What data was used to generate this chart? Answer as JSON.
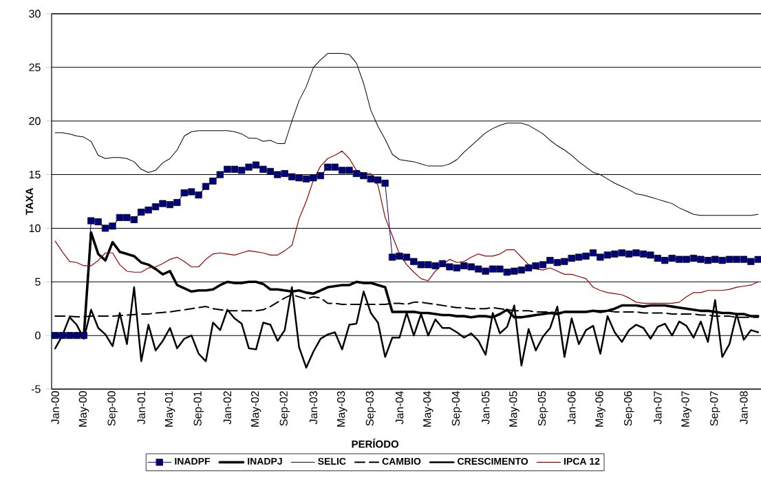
{
  "chart_data": {
    "type": "line",
    "xlabel": "PERÍODO",
    "ylabel": "TAXA",
    "categories": [
      "Jan-00",
      null,
      null,
      null,
      "May-00",
      null,
      null,
      null,
      "Sep-00",
      null,
      null,
      null,
      "Jan-01",
      null,
      null,
      null,
      "May-01",
      null,
      null,
      null,
      "Sep-01",
      null,
      null,
      null,
      "Jan-02",
      null,
      null,
      null,
      "May-02",
      null,
      null,
      null,
      "Sep-02",
      null,
      null,
      null,
      "Jan-03",
      null,
      null,
      null,
      "May-03",
      null,
      null,
      null,
      "Sep-03",
      null,
      null,
      null,
      "Jan-04",
      null,
      null,
      null,
      "May-04",
      null,
      null,
      null,
      "Sep-04",
      null,
      null,
      null,
      "Jan-05",
      null,
      null,
      null,
      "May-05",
      null,
      null,
      null,
      "Sep-05",
      null,
      null,
      null,
      "Jan-06",
      null,
      null,
      null,
      "May-06",
      null,
      null,
      null,
      "Sep-06",
      null,
      null,
      null,
      "Jan-07",
      null,
      null,
      null,
      "May-07",
      null,
      null,
      null,
      "Sep-07",
      null,
      null,
      null,
      "Jan-08",
      null,
      null
    ],
    "ylim": [
      -5,
      30
    ],
    "yticks": [
      -5,
      0,
      5,
      10,
      15,
      20,
      25,
      30
    ],
    "grid": "y",
    "legend": "bottom",
    "series": [
      {
        "name": "INADPF",
        "color": "#000080",
        "marker": "square",
        "line_style": "solid",
        "values": [
          0,
          0,
          0,
          0,
          0,
          10.7,
          10.6,
          10.0,
          10.2,
          11.0,
          11.0,
          10.8,
          11.5,
          11.7,
          12.0,
          12.3,
          12.2,
          12.4,
          13.3,
          13.4,
          13.1,
          13.9,
          14.4,
          15.0,
          15.5,
          15.5,
          15.4,
          15.7,
          15.9,
          15.5,
          15.3,
          15.0,
          15.1,
          14.8,
          14.7,
          14.6,
          14.7,
          14.9,
          15.7,
          15.7,
          15.4,
          15.4,
          15.1,
          14.9,
          14.6,
          14.5,
          14.2,
          7.3,
          7.4,
          7.3,
          6.9,
          6.6,
          6.6,
          6.5,
          6.7,
          6.4,
          6.3,
          6.5,
          6.4,
          6.2,
          6.0,
          6.2,
          6.2,
          5.9,
          6.0,
          6.1,
          6.3,
          6.5,
          6.6,
          7.0,
          6.8,
          6.9,
          7.2,
          7.3,
          7.4,
          7.7,
          7.3,
          7.5,
          7.6,
          7.7,
          7.6,
          7.7,
          7.6,
          7.5,
          7.2,
          7.0,
          7.2,
          7.1,
          7.1,
          7.2,
          7.1,
          7.0,
          7.1,
          7.0,
          7.1,
          7.1,
          7.1,
          6.9,
          7.1
        ]
      },
      {
        "name": "INADPJ",
        "color": "#000000",
        "marker": "none",
        "line_style": "solid",
        "values": [
          0,
          0,
          0,
          0,
          0,
          9.6,
          7.6,
          7.0,
          8.7,
          7.8,
          7.6,
          7.4,
          6.8,
          6.6,
          6.2,
          5.7,
          6.0,
          4.7,
          4.4,
          4.1,
          4.2,
          4.2,
          4.3,
          4.7,
          5.0,
          4.9,
          4.9,
          5.0,
          5.0,
          4.8,
          4.3,
          4.3,
          4.2,
          4.1,
          4.2,
          4.0,
          3.9,
          4.2,
          4.5,
          4.6,
          4.7,
          4.7,
          5.0,
          4.9,
          4.9,
          4.7,
          4.5,
          2.2,
          2.2,
          2.2,
          2.2,
          2.1,
          2.1,
          2.0,
          1.9,
          1.9,
          1.8,
          1.8,
          1.7,
          1.8,
          1.8,
          1.7,
          2.0,
          2.4,
          1.7,
          1.7,
          1.8,
          1.9,
          2.0,
          2.1,
          2.0,
          2.2,
          2.2,
          2.2,
          2.2,
          2.3,
          2.2,
          2.3,
          2.5,
          2.8,
          2.8,
          2.8,
          2.7,
          2.8,
          2.8,
          2.8,
          2.7,
          2.6,
          2.5,
          2.4,
          2.3,
          2.3,
          2.2,
          2.1,
          2.1,
          2.0,
          2.0,
          1.8,
          1.8
        ]
      },
      {
        "name": "SELIC",
        "color": "#000000",
        "marker": "none",
        "line_style": "solid",
        "values": [
          18.9,
          18.9,
          18.8,
          18.6,
          18.5,
          18.1,
          16.8,
          16.5,
          16.6,
          16.6,
          16.5,
          16.2,
          15.5,
          15.2,
          15.4,
          16.1,
          16.5,
          17.3,
          18.6,
          19.0,
          19.1,
          19.1,
          19.1,
          19.1,
          19.1,
          19.0,
          18.8,
          18.4,
          18.4,
          18.1,
          18.2,
          17.9,
          17.9,
          20.0,
          21.9,
          23.2,
          25.0,
          25.7,
          26.3,
          26.3,
          26.3,
          26.2,
          25.4,
          23.5,
          21.0,
          19.5,
          18.3,
          16.9,
          16.4,
          16.3,
          16.2,
          16.0,
          15.8,
          15.8,
          15.8,
          16.0,
          16.4,
          17.1,
          17.7,
          18.3,
          18.9,
          19.3,
          19.6,
          19.8,
          19.8,
          19.8,
          19.6,
          19.2,
          18.8,
          18.2,
          17.7,
          17.3,
          16.8,
          16.2,
          15.7,
          15.2,
          15.0,
          14.6,
          14.2,
          13.9,
          13.6,
          13.2,
          13.1,
          12.9,
          12.7,
          12.5,
          12.3,
          11.9,
          11.6,
          11.3,
          11.2,
          11.2,
          11.2,
          11.2,
          11.2,
          11.2,
          11.2,
          11.2,
          11.3
        ]
      },
      {
        "name": "CAMBIO",
        "color": "#000000",
        "marker": "none",
        "line_style": "dashed",
        "values": [
          1.8,
          1.8,
          1.8,
          1.75,
          1.75,
          1.8,
          1.8,
          1.8,
          1.8,
          1.85,
          1.9,
          1.95,
          2.0,
          2.0,
          2.1,
          2.15,
          2.2,
          2.3,
          2.4,
          2.5,
          2.6,
          2.7,
          2.5,
          2.4,
          2.3,
          2.3,
          2.3,
          2.3,
          2.3,
          2.4,
          2.7,
          3.1,
          3.5,
          3.8,
          3.6,
          3.4,
          3.6,
          3.5,
          3.0,
          3.0,
          2.9,
          2.9,
          2.9,
          2.9,
          2.9,
          2.9,
          2.9,
          3.0,
          3.0,
          2.9,
          3.1,
          3.1,
          3.0,
          2.9,
          2.8,
          2.7,
          2.6,
          2.6,
          2.5,
          2.5,
          2.5,
          2.6,
          2.5,
          2.4,
          2.3,
          2.3,
          2.3,
          2.2,
          2.2,
          2.2,
          2.1,
          2.2,
          2.2,
          2.2,
          2.2,
          2.3,
          2.3,
          2.3,
          2.2,
          2.2,
          2.2,
          2.2,
          2.1,
          2.1,
          2.1,
          2.1,
          2.0,
          2.0,
          2.0,
          2.0,
          1.9,
          1.9,
          1.8,
          1.8,
          1.8,
          1.7,
          1.7,
          1.7,
          1.7
        ]
      },
      {
        "name": "CRESCIMENTO",
        "color": "#000000",
        "marker": "none",
        "line_style": "solid",
        "values": [
          -1.2,
          0,
          1.7,
          1.0,
          -0.3,
          2.4,
          0.7,
          0.1,
          -1.0,
          2.1,
          -0.8,
          4.5,
          -2.4,
          1.0,
          -1.4,
          -0.5,
          0.7,
          -1.2,
          -0.3,
          0,
          -1.7,
          -2.4,
          1.2,
          0.5,
          2.4,
          1.6,
          1.1,
          -1.2,
          -1.3,
          1.2,
          1.0,
          -0.5,
          0.5,
          4.5,
          -1.1,
          -3.0,
          -1.5,
          -0.3,
          0.1,
          0.3,
          -1.3,
          1.0,
          1.1,
          4.1,
          2.1,
          1.2,
          -2.0,
          -0.2,
          -0.2,
          2.1,
          0,
          2.0,
          0,
          1.5,
          0.7,
          0.7,
          0.3,
          -0.2,
          0.2,
          -0.5,
          -1.8,
          2.1,
          0.2,
          0.8,
          2.8,
          -2.8,
          0.6,
          -1.4,
          -0.1,
          0.7,
          2.7,
          -2.0,
          1.6,
          -0.8,
          0.5,
          0.9,
          -1.7,
          1.8,
          0.3,
          -0.6,
          0.5,
          1.0,
          0.7,
          -0.3,
          0.8,
          1.1,
          0,
          1.3,
          0.9,
          -0.2,
          1.3,
          -0.6,
          3.3,
          -2.0,
          -0.8,
          2.0,
          -0.4,
          0.5,
          0.3
        ]
      },
      {
        "name": "IPCA 12",
        "color": "#990000",
        "marker": "none",
        "line_style": "solid",
        "values": [
          8.8,
          7.8,
          6.9,
          6.8,
          6.5,
          6.5,
          7.0,
          7.7,
          7.7,
          6.6,
          6.0,
          5.9,
          5.9,
          6.3,
          6.4,
          6.7,
          7.1,
          7.3,
          6.9,
          6.4,
          6.4,
          7.1,
          7.6,
          7.7,
          7.6,
          7.5,
          7.7,
          7.9,
          7.8,
          7.7,
          7.5,
          7.5,
          7.9,
          8.4,
          10.9,
          12.5,
          14.5,
          15.8,
          16.5,
          16.8,
          17.2,
          16.5,
          15.4,
          15.1,
          15.1,
          14.0,
          11.0,
          9.3,
          7.6,
          6.6,
          5.9,
          5.3,
          5.1,
          6.0,
          6.6,
          7.1,
          6.8,
          6.9,
          7.3,
          7.6,
          7.4,
          7.4,
          7.6,
          8.0,
          8.0,
          7.3,
          6.6,
          6.2,
          6.1,
          6.3,
          6.0,
          5.7,
          5.7,
          5.5,
          5.3,
          4.5,
          4.2,
          4.0,
          3.9,
          3.8,
          3.5,
          3.1,
          3.0,
          3.0,
          3.0,
          3.0,
          3.0,
          3.1,
          3.6,
          4.0,
          4.0,
          4.2,
          4.2,
          4.2,
          4.3,
          4.5,
          4.6,
          4.7,
          5.0
        ]
      }
    ]
  }
}
